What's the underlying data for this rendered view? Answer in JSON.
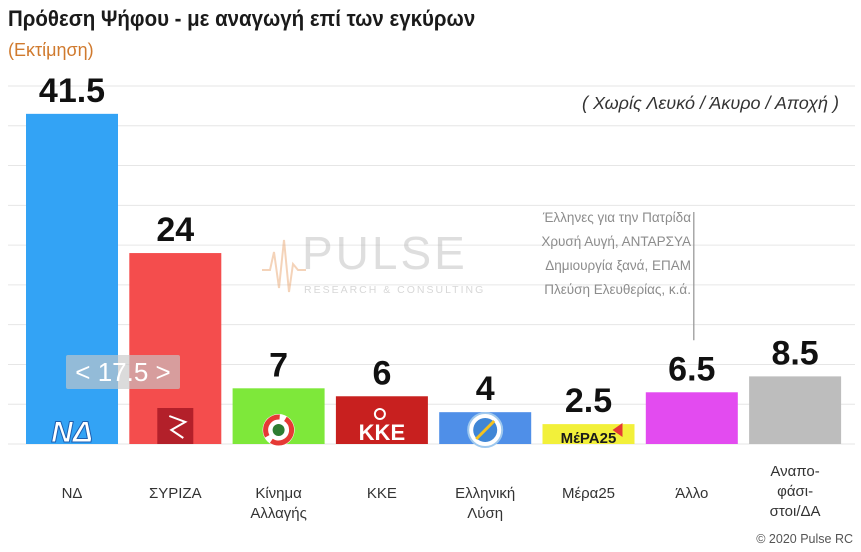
{
  "header": {
    "title": "Πρόθεση Ψήφου - με αναγωγή επί των εγκύρων",
    "subtitle": "(Εκτίμηση)",
    "note": "( Χωρίς Λευκό / Άκυρο / Αποχή )"
  },
  "watermark": {
    "word": "PULSE",
    "sub": "RESEARCH & CONSULTING"
  },
  "gap_badge": "< 17.5 >",
  "other_note": [
    "Έλληνες για την Πατρίδα",
    "Χρυσή Αυγή, ΑΝΤΑΡΣΥΑ",
    "Δημιουργία ξανά, ΕΠΑΜ",
    "Πλεύση Ελευθερίας, κ.ά."
  ],
  "copyright": "© 2020 Pulse RC",
  "chart_data": {
    "type": "bar",
    "title": "Πρόθεση Ψήφου - με αναγωγή επί των εγκύρων",
    "ylim": [
      0,
      45
    ],
    "grid": true,
    "categories": [
      "ΝΔ",
      "ΣΥΡΙΖΑ",
      "Κίνημα\nΑλλαγής",
      "ΚΚΕ",
      "Ελληνική\nΛύση",
      "Μέρα25",
      "Άλλο",
      "Αναπο-\nφάσι-\nστοι/ΔΑ"
    ],
    "values": [
      41.5,
      24,
      7,
      6,
      4,
      2.5,
      6.5,
      8.5
    ],
    "value_labels": [
      "41.5",
      "24",
      "7",
      "6",
      "4",
      "2.5",
      "6.5",
      "8.5"
    ],
    "colors": [
      "#33a3f5",
      "#f44d4d",
      "#7ee83a",
      "#c8201f",
      "#4f8fe8",
      "#f2f03a",
      "#e34bf0",
      "#bdbdbd"
    ],
    "logos": [
      "nd",
      "syriza",
      "kinal",
      "kke",
      "ellisi",
      "mera25",
      "",
      ""
    ],
    "logo_text": {
      "nd": "ΝΔ",
      "kke": "ΚΚΕ",
      "mera25": "ΜέΡΑ25"
    }
  }
}
